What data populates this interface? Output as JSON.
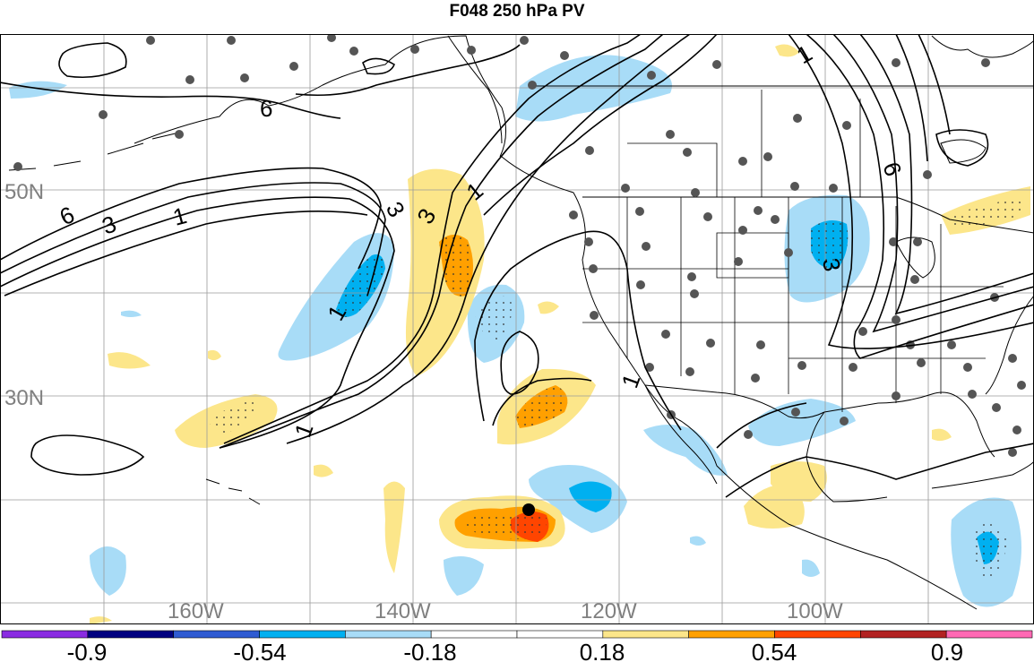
{
  "title": "F048 250 hPa PV",
  "lat_labels": [
    "50N",
    "30N"
  ],
  "lon_labels": [
    "160W",
    "140W",
    "120W",
    "100W"
  ],
  "contour_labels": [
    "6",
    "3",
    "1",
    "6",
    "3",
    "3",
    "1",
    "1",
    "1",
    "1",
    "3",
    "6",
    "1"
  ],
  "colorbar": {
    "tick_labels": [
      "-0.9",
      "-0.54",
      "-0.18",
      "0.18",
      "0.54",
      "0.9"
    ],
    "colors": [
      "#8a2be2",
      "#000080",
      "#2f5bd2",
      "#00b0f0",
      "#a8dcf7",
      "#ffffff",
      "#ffffff",
      "#fce68a",
      "#ffa000",
      "#ff4500",
      "#b22222",
      "#ff69b4"
    ]
  },
  "colors": {
    "land_line": "#000000",
    "grid": "#9a9a9a",
    "station": "#555555",
    "neg_weak": "#a8dcf7",
    "neg_strong": "#00b0f0",
    "pos_weak": "#fce68a",
    "pos_mid": "#ffa000",
    "pos_strong": "#ff4500"
  }
}
